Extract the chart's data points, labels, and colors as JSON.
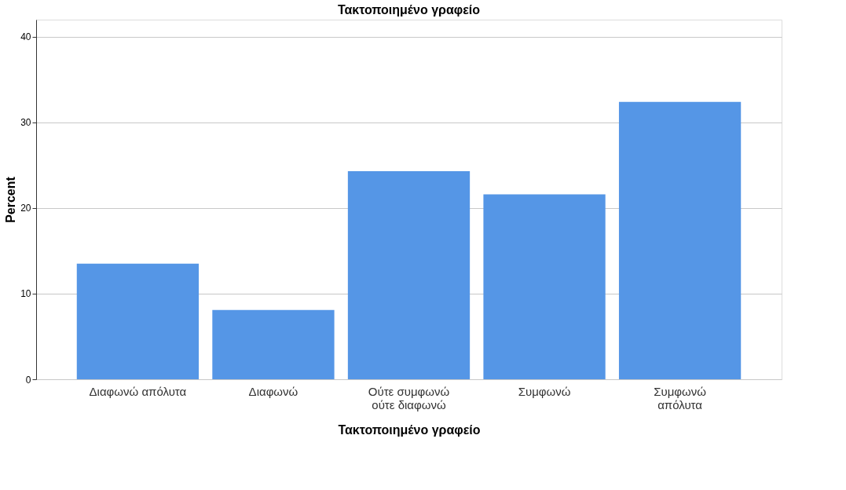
{
  "chart_data": {
    "type": "bar",
    "title": "Τακτοποιημένο γραφείο",
    "xlabel": "Τακτοποιημένο γραφείο",
    "ylabel": "Percent",
    "categories": [
      "Διαφωνώ απόλυτα",
      "Διαφωνώ",
      "Ούτε συμφωνώ\nούτε διαφωνώ",
      "Συμφωνώ",
      "Συμφωνώ\nαπόλυτα"
    ],
    "values": [
      13.5,
      8.1,
      24.3,
      21.6,
      32.4
    ],
    "color": "#5596e6",
    "ylim": [
      0,
      42
    ],
    "yticks": [
      0,
      10,
      20,
      30,
      40
    ],
    "grid": "y"
  }
}
